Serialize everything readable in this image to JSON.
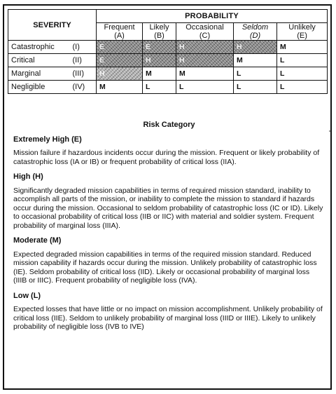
{
  "table": {
    "severity_header": "SEVERITY",
    "probability_header": "PROBABILITY",
    "columns": [
      {
        "label": "Frequent",
        "code": "(A)"
      },
      {
        "label": "Likely",
        "code": "(B)"
      },
      {
        "label": "Occasional",
        "code": "(C)"
      },
      {
        "label": "Seldom",
        "code": "(D)"
      },
      {
        "label": "Unlikely",
        "code": "(E)"
      }
    ],
    "rows": [
      {
        "severity": "Catastrophic",
        "code": "(I)",
        "cells": [
          {
            "v": "E",
            "shade": true
          },
          {
            "v": "E",
            "shade": true
          },
          {
            "v": "H",
            "shade": true
          },
          {
            "v": "H",
            "shade": true
          },
          {
            "v": "M",
            "shade": false
          }
        ]
      },
      {
        "severity": "Critical",
        "code": "(II)",
        "cells": [
          {
            "v": "E",
            "shade": true
          },
          {
            "v": "H",
            "shade": true
          },
          {
            "v": "H",
            "shade": true
          },
          {
            "v": "M",
            "shade": false
          },
          {
            "v": "L",
            "shade": false
          }
        ]
      },
      {
        "severity": "Marginal",
        "code": "(III)",
        "cells": [
          {
            "v": "H",
            "shade": true
          },
          {
            "v": "M",
            "shade": false
          },
          {
            "v": "M",
            "shade": false
          },
          {
            "v": "L",
            "shade": false
          },
          {
            "v": "L",
            "shade": false
          }
        ]
      },
      {
        "severity": "Negligible",
        "code": "(IV)",
        "cells": [
          {
            "v": "M",
            "shade": false
          },
          {
            "v": "L",
            "shade": false
          },
          {
            "v": "L",
            "shade": false
          },
          {
            "v": "L",
            "shade": false
          },
          {
            "v": "L",
            "shade": false
          }
        ]
      }
    ]
  },
  "risk": {
    "title": "Risk Category",
    "categories": [
      {
        "heading": "Extremely High (E)",
        "text": "Mission failure if hazardous incidents occur during the mission. Frequent or likely probability of catastrophic loss (IA or IB) or frequent probability of critical loss (IIA)."
      },
      {
        "heading": "High (H)",
        "text": "Significantly degraded mission capabilities in terms of required mission standard, inability to accomplish all parts of the mission, or inability to complete the mission to standard if hazards occur during the mission. Occasional to seldom probability of catastrophic loss (IC or ID). Likely to occasional probability of critical loss (IIB or IIC) with material and soldier system. Frequent probability of marginal loss (IIIA)."
      },
      {
        "heading": "Moderate (M)",
        "text": "Expected degraded mission capabilities in terms of the required mission standard. Reduced mission capability if hazards occur during the mission. Unlikely probability of catastrophic loss (IE). Seldom probability of critical loss (IID). Likely or occasional probability of marginal loss (IIIB or IIIC). Frequent probability of negligible loss (IVA)."
      },
      {
        "heading": "Low (L)",
        "text": "Expected losses that have little or no impact on mission accomplishment. Unlikely probability of critical loss (IIE). Seldom to unlikely probability of marginal loss (IIID or IIIE). Likely to unlikely probability of negligible loss (IVB to IVE)"
      }
    ]
  }
}
